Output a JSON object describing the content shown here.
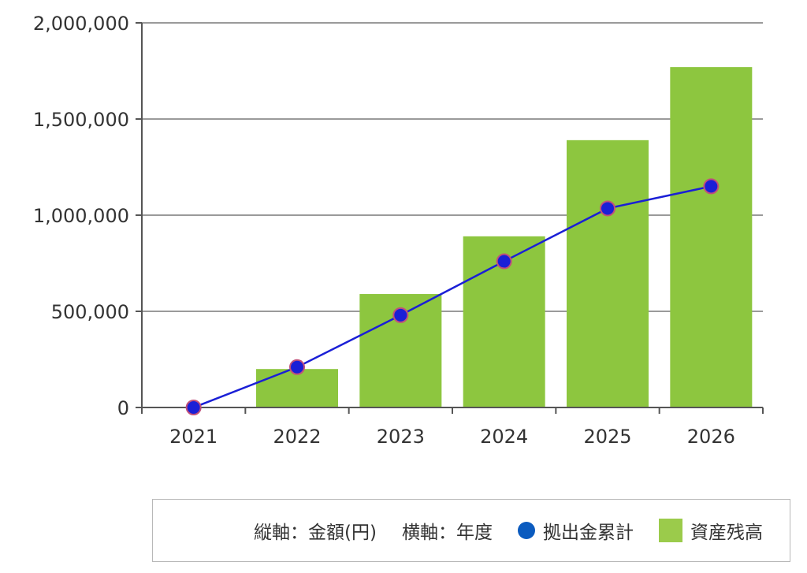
{
  "chart_data": {
    "type": "bar",
    "categories": [
      "2021",
      "2022",
      "2023",
      "2024",
      "2025",
      "2026"
    ],
    "series": [
      {
        "name": "資産残高",
        "type": "bar",
        "color": "#8dc63f",
        "values": [
          0,
          200000,
          590000,
          890000,
          1390000,
          1770000
        ]
      },
      {
        "name": "拠出金累計",
        "type": "line",
        "color": "#1a1fd6",
        "values": [
          0,
          210000,
          480000,
          760000,
          1035000,
          1150000
        ]
      }
    ],
    "ylim": [
      0,
      2000000
    ],
    "yticks": [
      "0",
      "500,000",
      "1,000,000",
      "1,500,000",
      "2,000,000"
    ],
    "grid": true,
    "legend_position": "bottom",
    "legend_notes": [
      "縦軸：金額(円)",
      "横軸：年度"
    ]
  },
  "legend": {
    "y_axis_note": "縦軸：金額(円)",
    "x_axis_note": "横軸：年度",
    "line_label": "拠出金累計",
    "bar_label": "資産残高",
    "line_color": "#0b5bbf",
    "bar_color": "#9bcb4b"
  }
}
